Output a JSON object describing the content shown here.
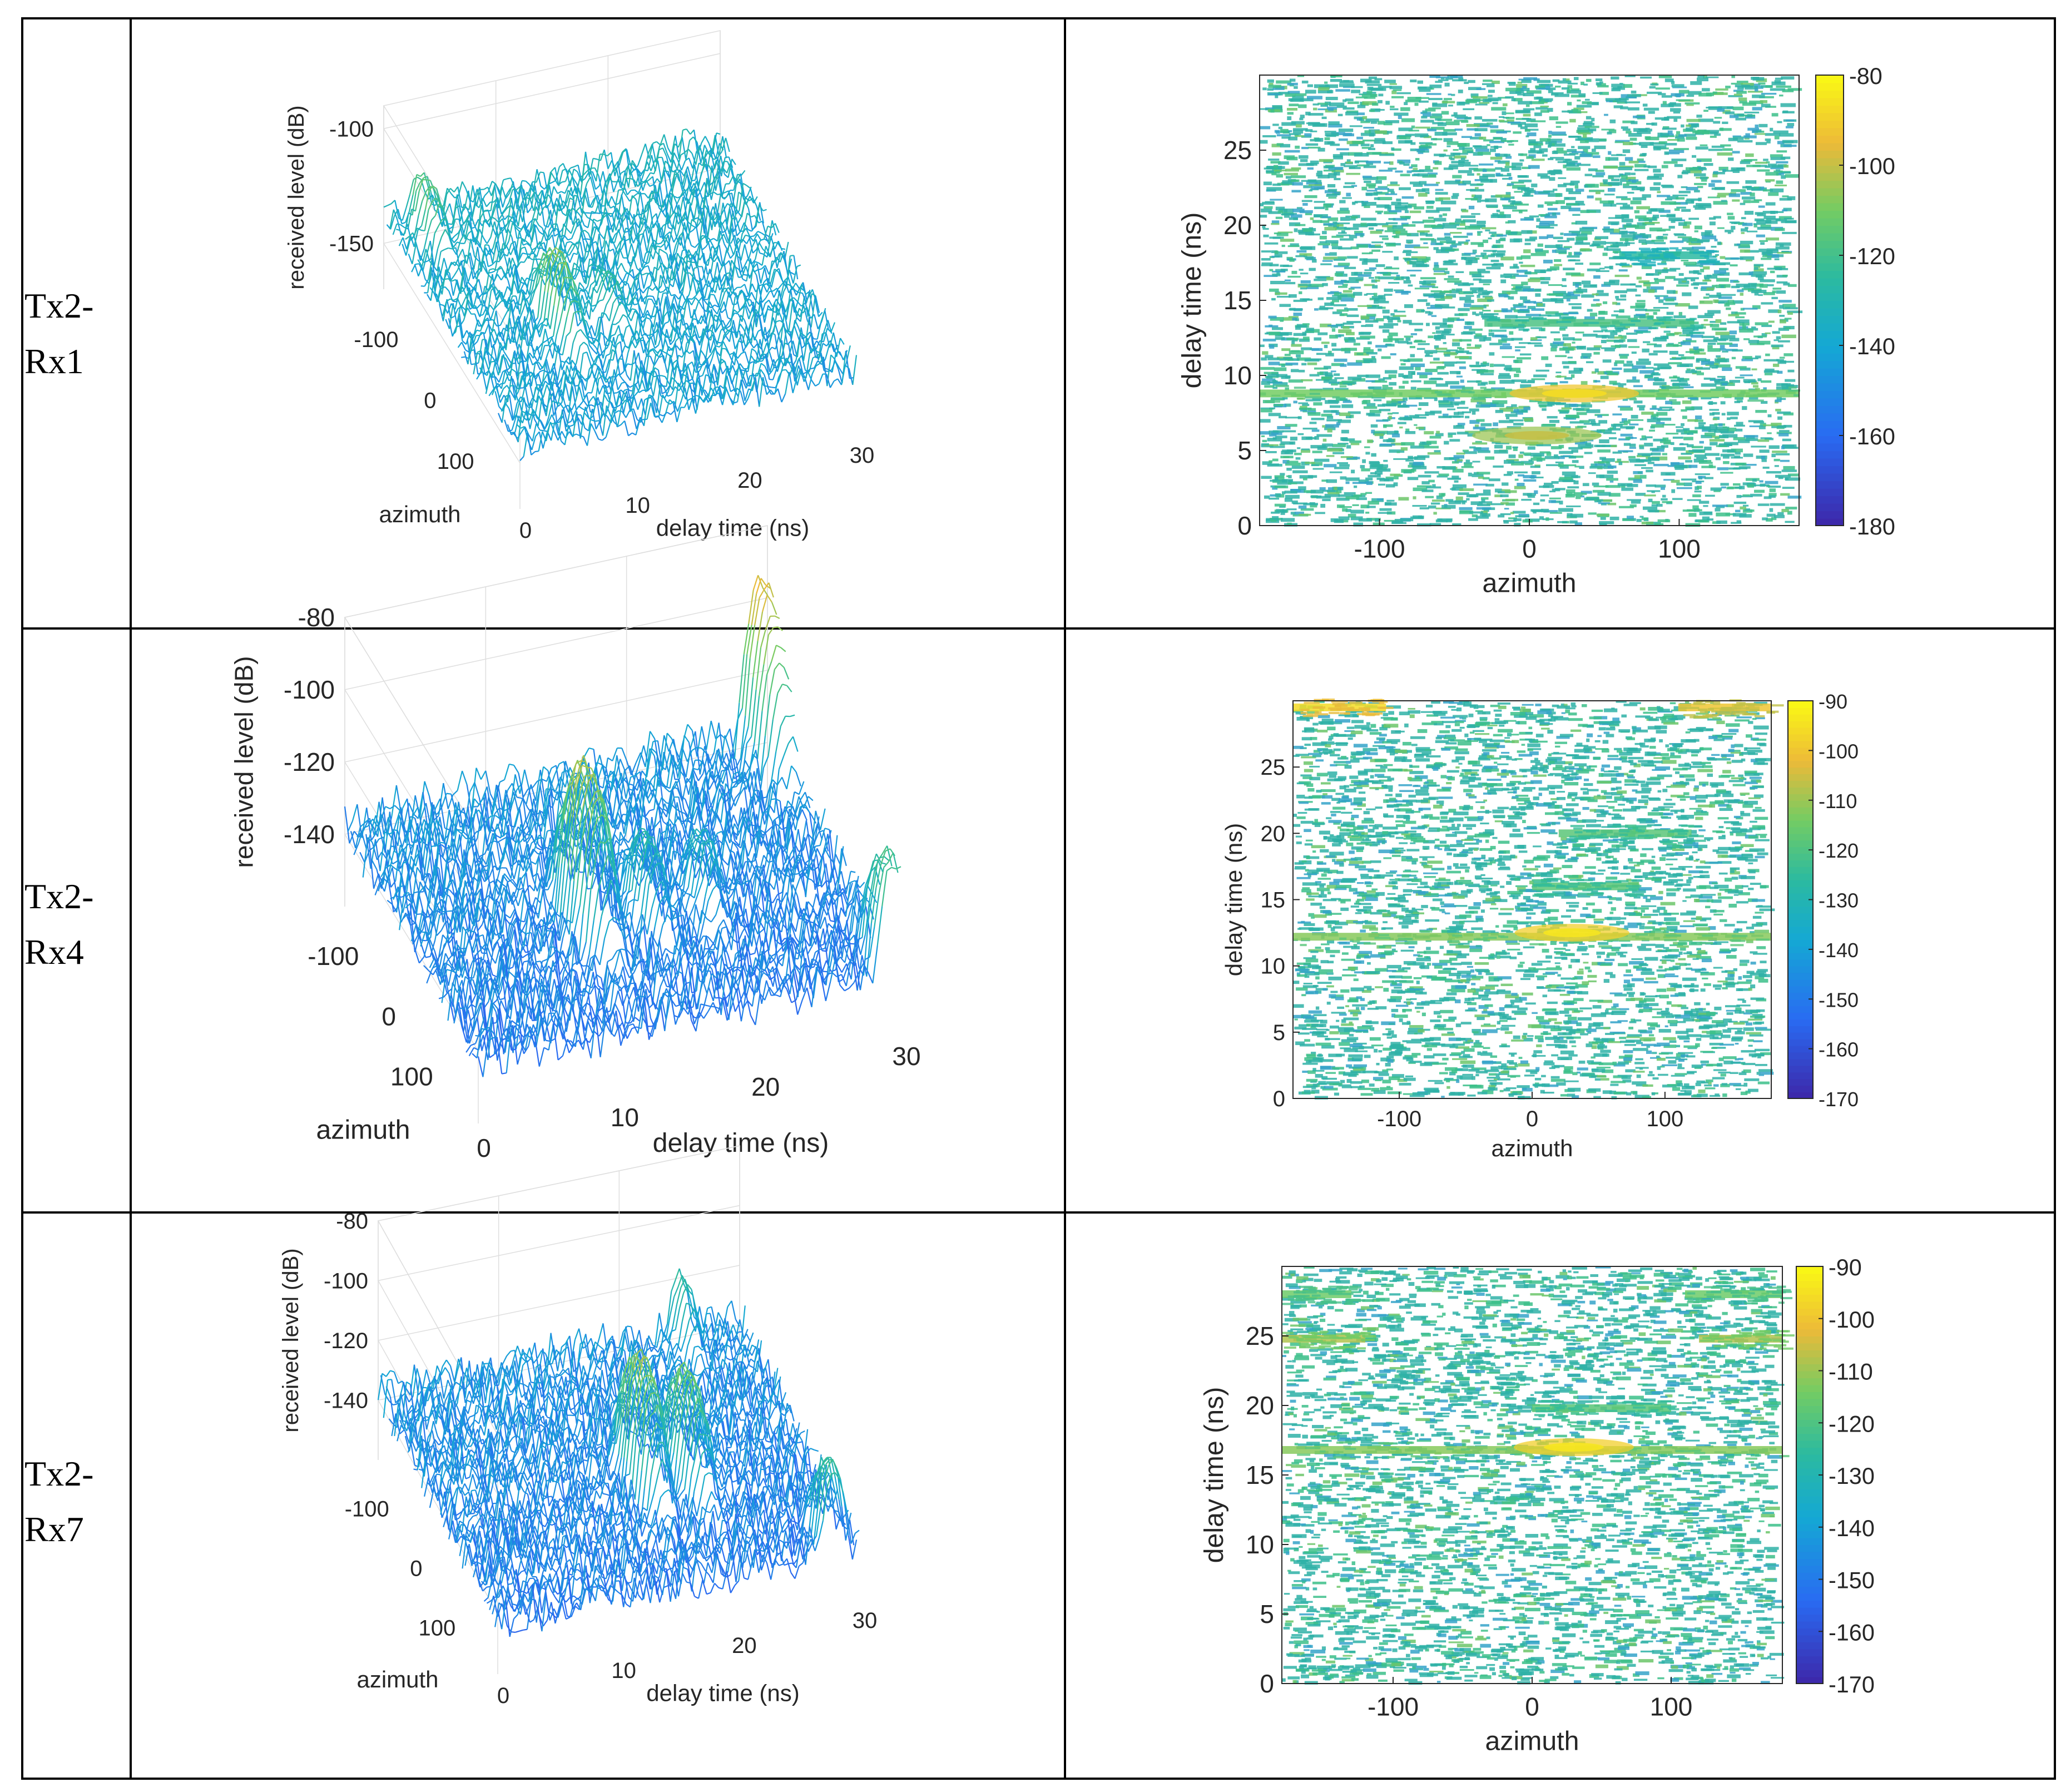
{
  "rows": [
    {
      "label_line1": "Tx2-",
      "label_line2": "Rx1"
    },
    {
      "label_line1": "Tx2-",
      "label_line2": "Rx4"
    },
    {
      "label_line1": "Tx2-",
      "label_line2": "Rx7"
    }
  ],
  "colors": {
    "border": "#000000",
    "axis": "#262626",
    "grid": "#d9d9d9",
    "noise_1": "#2fb2a7",
    "noise_2": "#3cbf8a",
    "ridge_hi": "#f5d53b",
    "ridge_orange": "#efb13a"
  },
  "chart_data": [
    {
      "type": "surface",
      "row": "Tx2-Rx1",
      "xlabel": "delay time (ns)",
      "ylabel": "azimuth",
      "zlabel": "received level (dB)",
      "xticks": [
        "0",
        "10",
        "20",
        "30"
      ],
      "yticks": [
        "-100",
        "0",
        "100"
      ],
      "zticks": [
        "-100",
        "-150"
      ],
      "xlim": [
        0,
        30
      ],
      "ylim": [
        -180,
        180
      ],
      "zlim": [
        -170,
        -90
      ],
      "noise_floor_db": -135,
      "peaks": [
        {
          "delay_ns": 9,
          "azimuth": 20,
          "level_db": -112
        },
        {
          "delay_ns": 13.5,
          "azimuth": 20,
          "level_db": -125
        },
        {
          "delay_ns": 3,
          "azimuth": -150,
          "level_db": -118
        }
      ]
    },
    {
      "type": "heatmap",
      "row": "Tx2-Rx1",
      "xlabel": "azimuth",
      "ylabel": "delay time (ns)",
      "xticks": [
        "-100",
        "0",
        "100"
      ],
      "yticks": [
        "0",
        "5",
        "10",
        "15",
        "20",
        "25"
      ],
      "xlim": [
        -180,
        180
      ],
      "ylim": [
        0,
        30
      ],
      "colorbar": {
        "ticks": [
          "-80",
          "-100",
          "-120",
          "-140",
          "-160",
          "-180"
        ],
        "range": [
          -180,
          -80
        ]
      },
      "bands": [
        {
          "delay_ns": 8.8,
          "azimuth_from": -180,
          "azimuth_to": 180,
          "level_db": -110
        },
        {
          "delay_ns": 13.5,
          "azimuth_from": -30,
          "azimuth_to": 110,
          "level_db": -118
        },
        {
          "delay_ns": 18,
          "azimuth_from": 60,
          "azimuth_to": 120,
          "level_db": -125
        }
      ],
      "hotspots": [
        {
          "azimuth": 30,
          "delay_ns": 8.8,
          "level_db": -92
        },
        {
          "azimuth": 5,
          "delay_ns": 6,
          "level_db": -105
        }
      ]
    },
    {
      "type": "surface",
      "row": "Tx2-Rx4",
      "xlabel": "delay time (ns)",
      "ylabel": "azimuth",
      "zlabel": "received level (dB)",
      "xticks": [
        "0",
        "10",
        "20",
        "30"
      ],
      "yticks": [
        "-100",
        "0",
        "100"
      ],
      "zticks": [
        "-80",
        "-100",
        "-120",
        "-140"
      ],
      "xlim": [
        0,
        30
      ],
      "ylim": [
        -180,
        180
      ],
      "zlim": [
        -160,
        -80
      ],
      "noise_floor_db": -135,
      "peaks": [
        {
          "delay_ns": 12,
          "azimuth": 20,
          "level_db": -98
        },
        {
          "delay_ns": 16,
          "azimuth": 30,
          "level_db": -118
        },
        {
          "delay_ns": 20,
          "azimuth": 30,
          "level_db": -122
        },
        {
          "delay_ns": 29.5,
          "azimuth": -170,
          "level_db": -94
        },
        {
          "delay_ns": 29.5,
          "azimuth": 170,
          "level_db": -112
        }
      ]
    },
    {
      "type": "heatmap",
      "row": "Tx2-Rx4",
      "xlabel": "azimuth",
      "ylabel": "delay time (ns)",
      "xticks": [
        "-100",
        "0",
        "100"
      ],
      "yticks": [
        "0",
        "5",
        "10",
        "15",
        "20",
        "25"
      ],
      "xlim": [
        -180,
        180
      ],
      "ylim": [
        0,
        30
      ],
      "colorbar": {
        "ticks": [
          "-90",
          "-100",
          "-110",
          "-120",
          "-130",
          "-140",
          "-150",
          "-160",
          "-170"
        ],
        "range": [
          -170,
          -90
        ]
      },
      "bands": [
        {
          "delay_ns": 12.2,
          "azimuth_from": -180,
          "azimuth_to": 180,
          "level_db": -112
        },
        {
          "delay_ns": 16,
          "azimuth_from": 0,
          "azimuth_to": 80,
          "level_db": -118
        },
        {
          "delay_ns": 20,
          "azimuth_from": 20,
          "azimuth_to": 120,
          "level_db": -118
        },
        {
          "delay_ns": 29.5,
          "azimuth_from": -180,
          "azimuth_to": -110,
          "level_db": -96
        },
        {
          "delay_ns": 29.5,
          "azimuth_from": 110,
          "azimuth_to": 180,
          "level_db": -100
        }
      ],
      "hotspots": [
        {
          "azimuth": 30,
          "delay_ns": 12.5,
          "level_db": -98
        }
      ]
    },
    {
      "type": "surface",
      "row": "Tx2-Rx7",
      "xlabel": "delay time (ns)",
      "ylabel": "azimuth",
      "zlabel": "received level (dB)",
      "xticks": [
        "0",
        "10",
        "20",
        "30"
      ],
      "yticks": [
        "-100",
        "0",
        "100"
      ],
      "zticks": [
        "-80",
        "-100",
        "-120",
        "-140"
      ],
      "xlim": [
        0,
        30
      ],
      "ylim": [
        -180,
        180
      ],
      "zlim": [
        -160,
        -80
      ],
      "noise_floor_db": -135,
      "peaks": [
        {
          "delay_ns": 16.5,
          "azimuth": 20,
          "level_db": -100
        },
        {
          "delay_ns": 20,
          "azimuth": 30,
          "level_db": -105
        },
        {
          "delay_ns": 25,
          "azimuth": -170,
          "level_db": -118
        },
        {
          "delay_ns": 28,
          "azimuth": 170,
          "level_db": -115
        }
      ]
    },
    {
      "type": "heatmap",
      "row": "Tx2-Rx7",
      "xlabel": "azimuth",
      "ylabel": "delay time (ns)",
      "xticks": [
        "-100",
        "0",
        "100"
      ],
      "yticks": [
        "0",
        "5",
        "10",
        "15",
        "20",
        "25"
      ],
      "xlim": [
        -180,
        180
      ],
      "ylim": [
        0,
        30
      ],
      "colorbar": {
        "ticks": [
          "-90",
          "-100",
          "-110",
          "-120",
          "-130",
          "-140",
          "-150",
          "-160",
          "-170"
        ],
        "range": [
          -170,
          -90
        ]
      },
      "bands": [
        {
          "delay_ns": 16.8,
          "azimuth_from": -180,
          "azimuth_to": 180,
          "level_db": -112
        },
        {
          "delay_ns": 19.8,
          "azimuth_from": 0,
          "azimuth_to": 100,
          "level_db": -118
        },
        {
          "delay_ns": 24.8,
          "azimuth_from": -180,
          "azimuth_to": -120,
          "level_db": -108
        },
        {
          "delay_ns": 24.8,
          "azimuth_from": 120,
          "azimuth_to": 180,
          "level_db": -108
        },
        {
          "delay_ns": 28,
          "azimuth_from": -180,
          "azimuth_to": -130,
          "level_db": -115
        },
        {
          "delay_ns": 28,
          "azimuth_from": 110,
          "azimuth_to": 180,
          "level_db": -115
        }
      ],
      "hotspots": [
        {
          "azimuth": 30,
          "delay_ns": 17,
          "level_db": -98
        }
      ]
    }
  ]
}
